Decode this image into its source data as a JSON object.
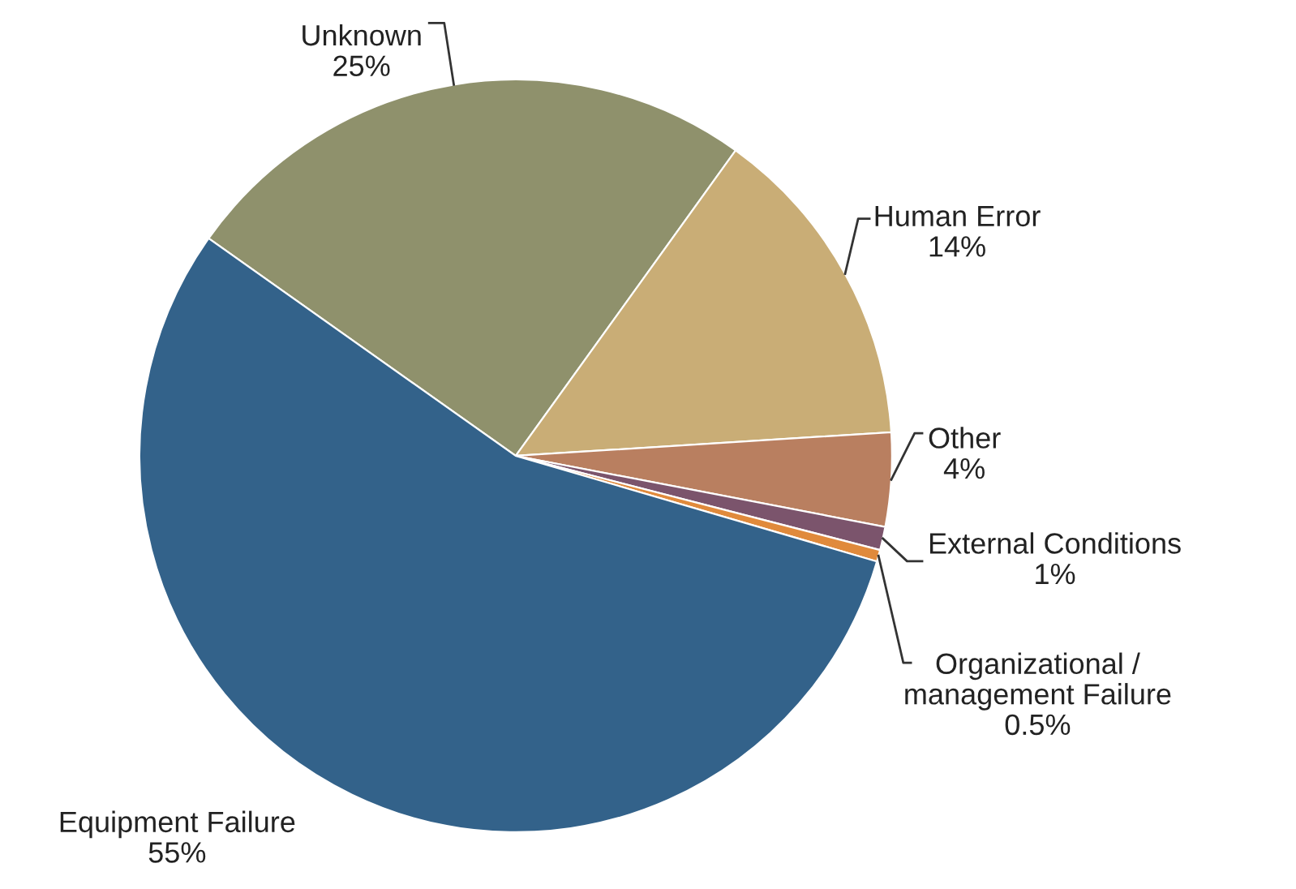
{
  "chart_data": {
    "type": "pie",
    "categories": [
      "Unknown",
      "Human Error",
      "Other",
      "External Conditions",
      "Organizational /\nmanagement Failure",
      "Equipment Failure"
    ],
    "values": [
      25,
      14,
      4,
      1,
      0.5,
      55
    ],
    "value_labels": [
      "25%",
      "14%",
      "4%",
      "1%",
      "0.5%",
      "55%"
    ],
    "colors": [
      "#8f916c",
      "#c9ad76",
      "#b97f60",
      "#7b546c",
      "#e08a3c",
      "#33628a"
    ],
    "legend": false
  }
}
